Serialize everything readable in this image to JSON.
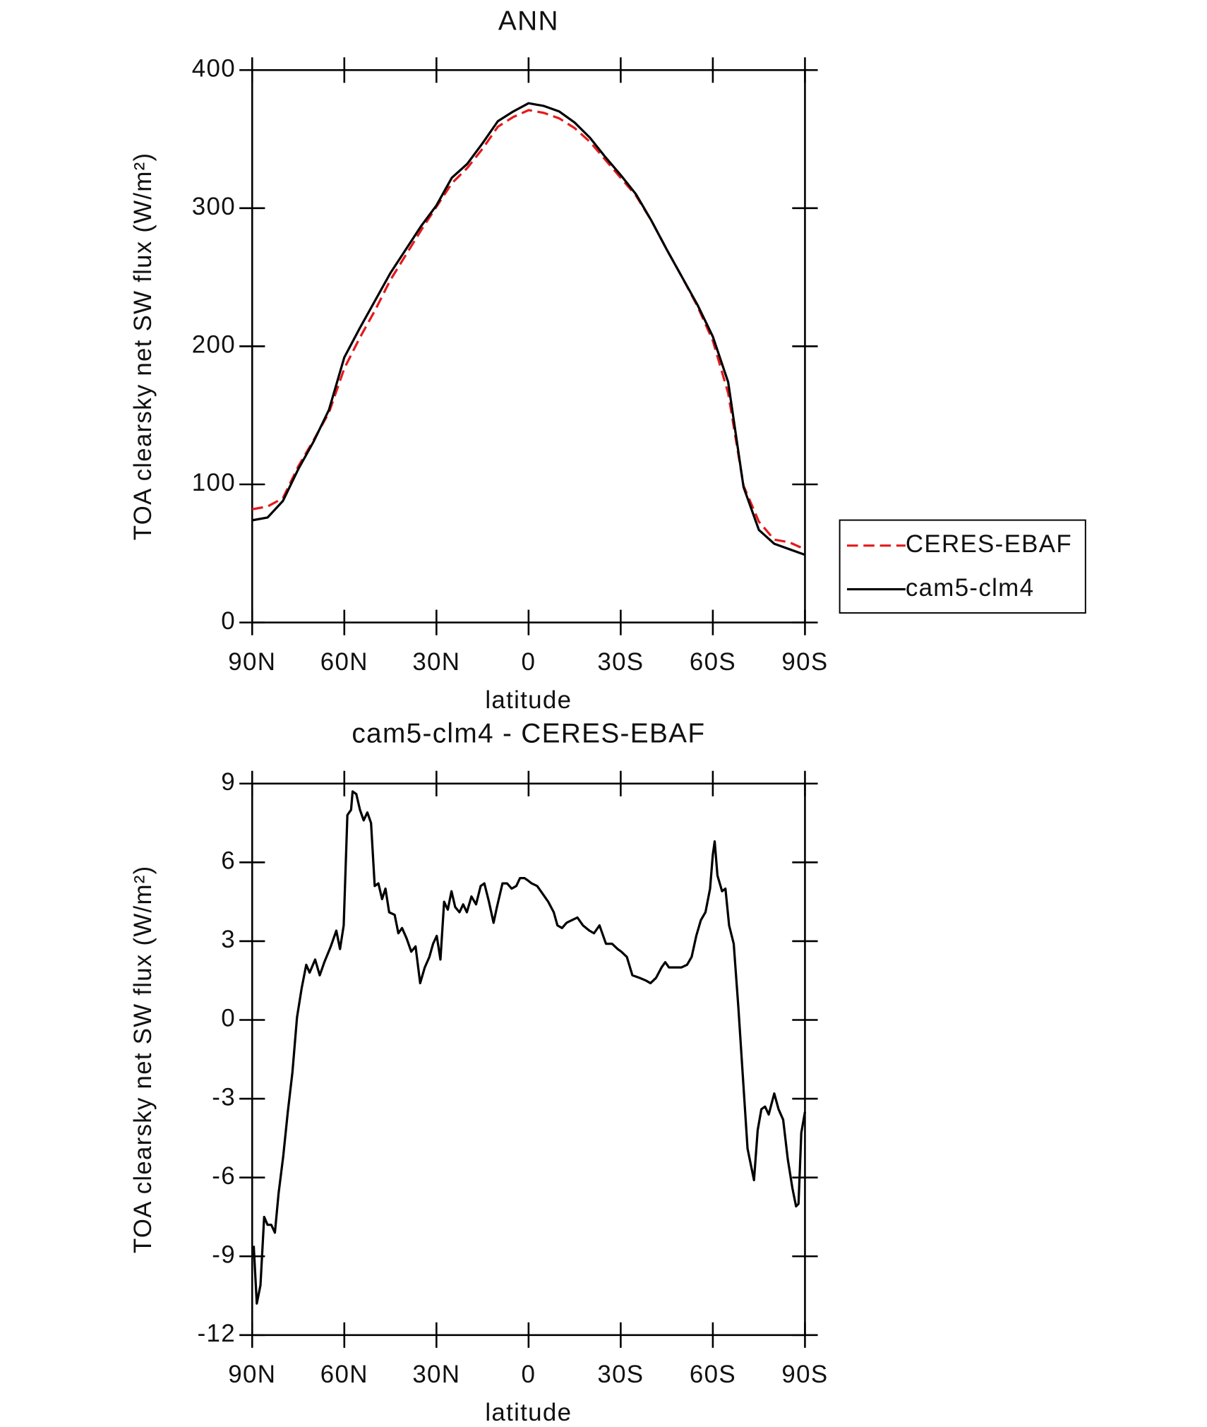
{
  "chart_data": [
    {
      "type": "line",
      "title": "ANN",
      "xlabel": "latitude",
      "ylabel": "TOA clearsky net SW flux (W/m²)",
      "x": [
        90,
        85,
        80,
        75,
        70,
        65,
        60,
        55,
        50,
        45,
        40,
        35,
        30,
        25,
        20,
        15,
        10,
        5,
        0,
        -5,
        -10,
        -15,
        -20,
        -25,
        -30,
        -35,
        -40,
        -45,
        -50,
        -55,
        -60,
        -65,
        -70,
        -75,
        -80,
        -85,
        -90
      ],
      "series": [
        {
          "name": "CERES-EBAF",
          "color": "#e41a1c",
          "style": "dashed",
          "values": [
            82,
            84,
            90,
            113,
            132,
            152,
            184,
            206,
            226,
            248,
            266,
            284,
            301,
            318,
            329,
            343,
            359,
            366,
            371,
            369,
            365,
            358,
            348,
            335,
            322,
            309,
            291,
            270,
            250,
            229,
            204,
            166,
            99,
            73,
            60,
            58,
            53
          ]
        },
        {
          "name": "cam5-clm4",
          "color": "#000000",
          "style": "solid",
          "values": [
            74,
            76,
            88,
            111,
            131,
            154,
            192,
            213,
            233,
            253,
            270,
            287,
            302,
            322,
            332,
            347,
            363,
            370,
            376,
            374,
            370,
            362,
            351,
            337,
            324,
            310,
            291,
            270,
            250,
            230,
            207,
            174,
            98,
            67,
            57,
            53,
            49
          ]
        }
      ],
      "xlim": [
        90,
        -90
      ],
      "xticks": [
        {
          "value": 90,
          "label": "90N"
        },
        {
          "value": 60,
          "label": "60N"
        },
        {
          "value": 30,
          "label": "30N"
        },
        0,
        {
          "value": -30,
          "label": "30S"
        },
        {
          "value": -60,
          "label": "60S"
        },
        {
          "value": -90,
          "label": "90S"
        }
      ],
      "ylim": [
        0,
        400
      ],
      "yticks": [
        0,
        100,
        200,
        300,
        400
      ],
      "legend": "right"
    },
    {
      "type": "line",
      "title": "cam5-clm4 - CERES-EBAF",
      "xlabel": "latitude",
      "ylabel": "TOA clearsky net SW flux (W/m²)",
      "x": [
        89.5,
        88.5,
        87.3,
        86.1,
        85,
        83.8,
        82.6,
        81.4,
        79.9,
        78.4,
        76.9,
        75.4,
        73.9,
        72.4,
        71.3,
        69.5,
        68,
        66.5,
        64.4,
        62.6,
        61.4,
        60.2,
        59,
        57.8,
        57.3,
        56.1,
        54.9,
        53.7,
        52.5,
        51.3,
        50.1,
        48.9,
        47.7,
        46.6,
        45.4,
        43.6,
        42.4,
        41.2,
        39.7,
        38.2,
        36.8,
        35.3,
        33.8,
        32.3,
        31.1,
        29.9,
        28.7,
        27.5,
        26.3,
        25.1,
        23.9,
        22.5,
        21.3,
        20.1,
        18.6,
        17.1,
        15.6,
        14.4,
        12.9,
        11.4,
        10.3,
        8.5,
        7,
        5.5,
        4,
        2.8,
        1.3,
        0.1,
        -1,
        -2.8,
        -4.6,
        -6.4,
        -8.2,
        -9.4,
        -10.9,
        -12.4,
        -14.1,
        -15.9,
        -17.7,
        -19.8,
        -21.3,
        -23.1,
        -25.2,
        -27.2,
        -29,
        -30.2,
        -32,
        -33.8,
        -36.2,
        -38.2,
        -39.7,
        -41.5,
        -43.3,
        -44.5,
        -45.7,
        -48.1,
        -49.8,
        -51.6,
        -53.1,
        -54.6,
        -56.1,
        -57.6,
        -59.1,
        -60,
        -60.6,
        -61.5,
        -63,
        -64.1,
        -65.3,
        -66.8,
        -68.3,
        -69.8,
        -71.3,
        -73.4,
        -74.6,
        -75.8,
        -77,
        -78.2,
        -80,
        -81.4,
        -82.9,
        -84.4,
        -85.9,
        -87.1,
        -87.9,
        -88.8,
        -90
      ],
      "series": [
        {
          "color": "#000000",
          "style": "solid",
          "values": [
            -8.6,
            -10.8,
            -10.1,
            -7.5,
            -7.8,
            -7.8,
            -8.1,
            -6.6,
            -5.2,
            -3.5,
            -2.0,
            0.1,
            1.2,
            2.1,
            1.8,
            2.3,
            1.7,
            2.2,
            2.8,
            3.4,
            2.7,
            3.6,
            7.8,
            8.0,
            8.7,
            8.6,
            8.0,
            7.6,
            7.9,
            7.5,
            5.1,
            5.2,
            4.6,
            5.0,
            4.1,
            4.0,
            3.3,
            3.5,
            3.1,
            2.6,
            2.8,
            1.4,
            2.0,
            2.4,
            2.9,
            3.2,
            2.3,
            4.5,
            4.2,
            4.9,
            4.3,
            4.1,
            4.4,
            4.1,
            4.7,
            4.4,
            5.1,
            5.2,
            4.5,
            3.7,
            4.3,
            5.2,
            5.2,
            5.0,
            5.1,
            5.4,
            5.4,
            5.3,
            5.2,
            5.1,
            4.8,
            4.5,
            4.1,
            3.6,
            3.5,
            3.7,
            3.8,
            3.9,
            3.6,
            3.4,
            3.3,
            3.6,
            2.9,
            2.9,
            2.7,
            2.6,
            2.4,
            1.7,
            1.6,
            1.5,
            1.4,
            1.6,
            2.0,
            2.2,
            2.0,
            2.0,
            2.0,
            2.1,
            2.4,
            3.2,
            3.8,
            4.1,
            5.0,
            6.3,
            6.8,
            5.5,
            4.9,
            5.0,
            3.6,
            2.9,
            0.5,
            -2.2,
            -4.9,
            -6.1,
            -4.2,
            -3.4,
            -3.3,
            -3.6,
            -2.8,
            -3.4,
            -3.8,
            -5.3,
            -6.4,
            -7.1,
            -7.0,
            -4.3,
            -3.5
          ]
        }
      ],
      "xlim": [
        90,
        -90
      ],
      "xticks": [
        {
          "value": 90,
          "label": "90N"
        },
        {
          "value": 60,
          "label": "60N"
        },
        {
          "value": 30,
          "label": "30N"
        },
        0,
        {
          "value": -30,
          "label": "30S"
        },
        {
          "value": -60,
          "label": "60S"
        },
        {
          "value": -90,
          "label": "90S"
        }
      ],
      "ylim": [
        -12,
        9
      ],
      "yticks": [
        -12,
        -9,
        -6,
        -3,
        0,
        3,
        6,
        9
      ]
    }
  ]
}
